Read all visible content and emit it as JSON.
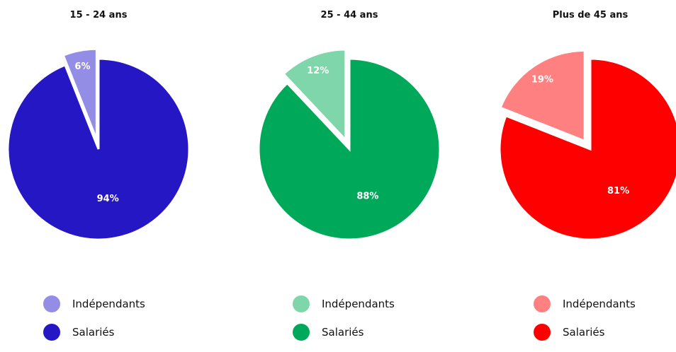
{
  "chart_data": [
    {
      "type": "pie",
      "title": "15 - 24 ans",
      "slices": [
        {
          "label": "Indépendants",
          "value": 6,
          "display": "6%",
          "color": "#948de6",
          "exploded": true
        },
        {
          "label": "Salariés",
          "value": 94,
          "display": "94%",
          "color": "#2617c4",
          "exploded": false
        }
      ]
    },
    {
      "type": "pie",
      "title": "25 - 44 ans",
      "slices": [
        {
          "label": "Indépendants",
          "value": 12,
          "display": "12%",
          "color": "#7fd6aa",
          "exploded": true
        },
        {
          "label": "Salariés",
          "value": 88,
          "display": "88%",
          "color": "#00a85a",
          "exploded": false
        }
      ]
    },
    {
      "type": "pie",
      "title": "Plus de 45 ans",
      "slices": [
        {
          "label": "Indépendants",
          "value": 19,
          "display": "19%",
          "color": "#ff8080",
          "exploded": true
        },
        {
          "label": "Salariés",
          "value": 81,
          "display": "81%",
          "color": "#ff0000",
          "exploded": false
        }
      ]
    }
  ]
}
